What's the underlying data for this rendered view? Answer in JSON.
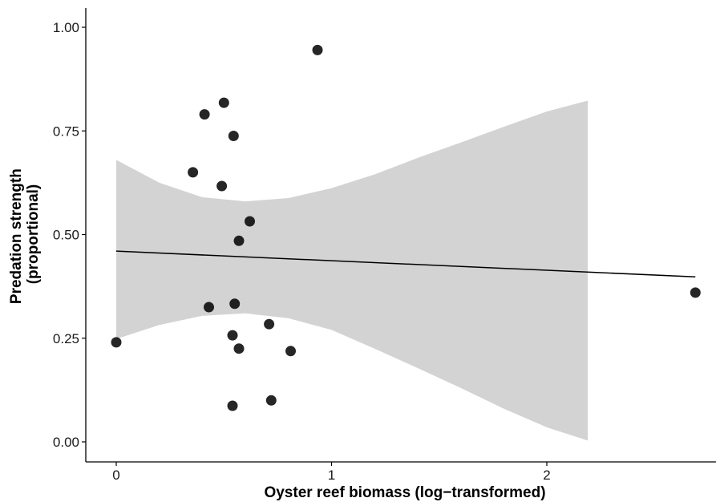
{
  "chart_data": {
    "type": "scatter",
    "title": "",
    "xlabel": "Oyster reef biomass (log−transformed)",
    "ylabel_lines": [
      "Predation strength",
      "(proportional)"
    ],
    "xlim": [
      -0.13,
      2.75
    ],
    "ylim": [
      -0.05,
      1.05
    ],
    "x_ticks": [
      0,
      1,
      2
    ],
    "x_tick_labels": [
      "0",
      "1",
      "2"
    ],
    "y_ticks": [
      0,
      0.25,
      0.5,
      0.75,
      1.0
    ],
    "y_tick_labels": [
      "0.00",
      "0.25",
      "0.50",
      "0.75",
      "1.00"
    ],
    "grid": false,
    "legend": "none",
    "points": [
      {
        "x": 0.0,
        "y": 0.24
      },
      {
        "x": 0.356,
        "y": 0.65
      },
      {
        "x": 0.41,
        "y": 0.79
      },
      {
        "x": 0.43,
        "y": 0.325
      },
      {
        "x": 0.49,
        "y": 0.617
      },
      {
        "x": 0.5,
        "y": 0.818
      },
      {
        "x": 0.54,
        "y": 0.087
      },
      {
        "x": 0.54,
        "y": 0.257
      },
      {
        "x": 0.545,
        "y": 0.738
      },
      {
        "x": 0.55,
        "y": 0.333
      },
      {
        "x": 0.57,
        "y": 0.225
      },
      {
        "x": 0.57,
        "y": 0.485
      },
      {
        "x": 0.62,
        "y": 0.532
      },
      {
        "x": 0.71,
        "y": 0.284
      },
      {
        "x": 0.72,
        "y": 0.1
      },
      {
        "x": 0.81,
        "y": 0.219
      },
      {
        "x": 0.935,
        "y": 0.945
      },
      {
        "x": 2.69,
        "y": 0.36
      }
    ],
    "trend_line": {
      "x": [
        0.0,
        2.69
      ],
      "y": [
        0.46,
        0.398
      ]
    },
    "confidence_band": {
      "x": [
        0.0,
        0.2,
        0.4,
        0.6,
        0.8,
        1.0,
        1.2,
        1.4,
        1.6,
        1.8,
        2.0,
        2.19
      ],
      "upper": [
        0.68,
        0.625,
        0.59,
        0.58,
        0.588,
        0.612,
        0.645,
        0.685,
        0.722,
        0.76,
        0.797,
        0.823
      ],
      "lower": [
        0.248,
        0.282,
        0.304,
        0.31,
        0.298,
        0.27,
        0.225,
        0.178,
        0.13,
        0.08,
        0.035,
        0.003
      ]
    },
    "colors": {
      "points": "#000000",
      "band": "#d3d3d3",
      "line": "#000000",
      "axis": "#000000"
    }
  }
}
